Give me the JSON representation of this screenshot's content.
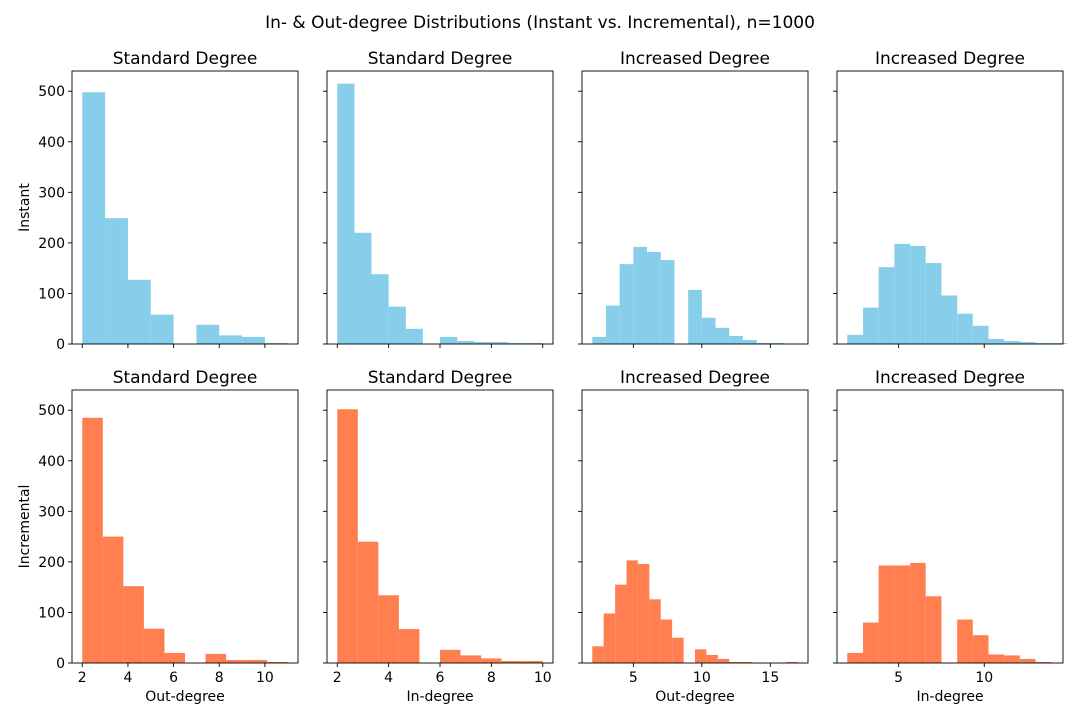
{
  "figure": {
    "title": "In- & Out-degree Distributions (Instant vs. Incremental), n=1000"
  },
  "colors": {
    "instant": "#87CEEB",
    "incremental": "#FF7F50"
  },
  "chart_data": [
    {
      "type": "bar",
      "row": 0,
      "col": 0,
      "title": "Standard Degree",
      "ylabel": "Instant",
      "xlabel": "",
      "color": "#87CEEB",
      "bins": [
        [
          2,
          3,
          498
        ],
        [
          3,
          4,
          249
        ],
        [
          4,
          5,
          127
        ],
        [
          5,
          6,
          58
        ],
        [
          6,
          7,
          0
        ],
        [
          7,
          8,
          38
        ],
        [
          8,
          9,
          17
        ],
        [
          9,
          10,
          14
        ],
        [
          10,
          11,
          2
        ]
      ],
      "xlim": [
        1.55,
        11.45
      ],
      "ylim": [
        0,
        540
      ],
      "xticks": [
        2,
        4,
        6,
        8,
        10
      ],
      "yticks": [
        0,
        100,
        200,
        300,
        400,
        500
      ],
      "show_xticklabels": false,
      "show_yticklabels": true
    },
    {
      "type": "bar",
      "row": 0,
      "col": 1,
      "title": "Standard Degree",
      "ylabel": "",
      "xlabel": "",
      "color": "#87CEEB",
      "bins": [
        [
          2,
          2.67,
          515
        ],
        [
          2.67,
          3.33,
          220
        ],
        [
          3.33,
          4,
          138
        ],
        [
          4,
          4.67,
          74
        ],
        [
          4.67,
          5.33,
          30
        ],
        [
          5.33,
          6,
          0
        ],
        [
          6,
          6.67,
          14
        ],
        [
          6.67,
          7.33,
          6
        ],
        [
          7.33,
          8,
          4
        ],
        [
          8,
          8.67,
          4
        ],
        [
          8.67,
          9.33,
          2
        ],
        [
          9.33,
          10,
          2
        ]
      ],
      "xlim": [
        1.6,
        10.4
      ],
      "ylim": [
        0,
        540
      ],
      "xticks": [
        2,
        4,
        6,
        8,
        10
      ],
      "yticks": [
        0,
        100,
        200,
        300,
        400,
        500
      ],
      "show_xticklabels": false,
      "show_yticklabels": false
    },
    {
      "type": "bar",
      "row": 0,
      "col": 2,
      "title": "Increased Degree",
      "ylabel": "",
      "xlabel": "",
      "color": "#87CEEB",
      "bins": [
        [
          2,
          3,
          14
        ],
        [
          3,
          4,
          76
        ],
        [
          4,
          5,
          158
        ],
        [
          5,
          6,
          192
        ],
        [
          6,
          7,
          182
        ],
        [
          7,
          8,
          166
        ],
        [
          8,
          9,
          0
        ],
        [
          9,
          10,
          107
        ],
        [
          10,
          11,
          52
        ],
        [
          11,
          12,
          32
        ],
        [
          12,
          13,
          16
        ],
        [
          13,
          14,
          8
        ],
        [
          14,
          15,
          2
        ],
        [
          15,
          16,
          2
        ],
        [
          16,
          17,
          1
        ]
      ],
      "xlim": [
        1.25,
        17.75
      ],
      "ylim": [
        0,
        540
      ],
      "xticks": [
        5,
        10,
        15
      ],
      "yticks": [
        0,
        100,
        200,
        300,
        400,
        500
      ],
      "show_xticklabels": false,
      "show_yticklabels": false
    },
    {
      "type": "bar",
      "row": 0,
      "col": 3,
      "title": "Increased Degree",
      "ylabel": "",
      "xlabel": "",
      "color": "#87CEEB",
      "bins": [
        [
          2,
          2.92,
          18
        ],
        [
          2.92,
          3.83,
          72
        ],
        [
          3.83,
          4.75,
          152
        ],
        [
          4.75,
          5.67,
          198
        ],
        [
          5.67,
          6.58,
          194
        ],
        [
          6.58,
          7.5,
          160
        ],
        [
          7.5,
          8.42,
          96
        ],
        [
          8.42,
          9.33,
          60
        ],
        [
          9.33,
          10.25,
          36
        ],
        [
          10.25,
          11.17,
          10
        ],
        [
          11.17,
          12.08,
          6
        ],
        [
          12.08,
          13,
          4
        ],
        [
          13,
          13.92,
          2
        ],
        [
          13.92,
          14.83,
          2
        ]
      ],
      "xlim": [
        1.4,
        14.6
      ],
      "ylim": [
        0,
        540
      ],
      "xticks": [
        5,
        10
      ],
      "yticks": [
        0,
        100,
        200,
        300,
        400,
        500
      ],
      "show_xticklabels": false,
      "show_yticklabels": false
    },
    {
      "type": "bar",
      "row": 1,
      "col": 0,
      "title": "Standard Degree",
      "ylabel": "Incremental",
      "xlabel": "Out-degree",
      "color": "#FF7F50",
      "bins": [
        [
          2,
          2.9,
          485
        ],
        [
          2.9,
          3.8,
          250
        ],
        [
          3.8,
          4.7,
          152
        ],
        [
          4.7,
          5.6,
          68
        ],
        [
          5.6,
          6.5,
          20
        ],
        [
          6.5,
          7.4,
          0
        ],
        [
          7.4,
          8.3,
          18
        ],
        [
          8.3,
          9.2,
          6
        ],
        [
          9.2,
          10.1,
          6
        ],
        [
          10.1,
          11,
          2
        ]
      ],
      "xlim": [
        1.55,
        11.45
      ],
      "ylim": [
        0,
        540
      ],
      "xticks": [
        2,
        4,
        6,
        8,
        10
      ],
      "yticks": [
        0,
        100,
        200,
        300,
        400,
        500
      ],
      "show_xticklabels": true,
      "show_yticklabels": true
    },
    {
      "type": "bar",
      "row": 1,
      "col": 1,
      "title": "Standard Degree",
      "ylabel": "",
      "xlabel": "In-degree",
      "color": "#FF7F50",
      "bins": [
        [
          2,
          2.8,
          502
        ],
        [
          2.8,
          3.6,
          240
        ],
        [
          3.6,
          4.4,
          134
        ],
        [
          4.4,
          5.2,
          67
        ],
        [
          5.2,
          6,
          0
        ],
        [
          6,
          6.8,
          26
        ],
        [
          6.8,
          7.6,
          15
        ],
        [
          7.6,
          8.4,
          9
        ],
        [
          8.4,
          9.2,
          4
        ],
        [
          9.2,
          10,
          4
        ]
      ],
      "xlim": [
        1.6,
        10.4
      ],
      "ylim": [
        0,
        540
      ],
      "xticks": [
        2,
        4,
        6,
        8,
        10
      ],
      "yticks": [
        0,
        100,
        200,
        300,
        400,
        500
      ],
      "show_xticklabels": true,
      "show_yticklabels": false
    },
    {
      "type": "bar",
      "row": 1,
      "col": 2,
      "title": "Increased Degree",
      "ylabel": "",
      "xlabel": "Out-degree",
      "color": "#FF7F50",
      "bins": [
        [
          2,
          2.83,
          33
        ],
        [
          2.83,
          3.67,
          98
        ],
        [
          3.67,
          4.5,
          155
        ],
        [
          4.5,
          5.33,
          203
        ],
        [
          5.33,
          6.17,
          196
        ],
        [
          6.17,
          7,
          126
        ],
        [
          7,
          7.83,
          86
        ],
        [
          7.83,
          8.67,
          50
        ],
        [
          8.67,
          9.5,
          0
        ],
        [
          9.5,
          10.33,
          27
        ],
        [
          10.33,
          11.17,
          16
        ],
        [
          11.17,
          12,
          8
        ],
        [
          12,
          12.83,
          2
        ],
        [
          12.83,
          13.67,
          2
        ],
        [
          13.67,
          14.5,
          0
        ],
        [
          14.5,
          15.33,
          0
        ],
        [
          15.33,
          16.17,
          0
        ],
        [
          16.17,
          17,
          2
        ]
      ],
      "xlim": [
        1.25,
        17.75
      ],
      "ylim": [
        0,
        540
      ],
      "xticks": [
        5,
        10,
        15
      ],
      "yticks": [
        0,
        100,
        200,
        300,
        400,
        500
      ],
      "show_xticklabels": true,
      "show_yticklabels": false
    },
    {
      "type": "bar",
      "row": 1,
      "col": 3,
      "title": "Increased Degree",
      "ylabel": "",
      "xlabel": "In-degree",
      "color": "#FF7F50",
      "bins": [
        [
          2,
          2.92,
          20
        ],
        [
          2.92,
          3.83,
          80
        ],
        [
          3.83,
          4.75,
          193
        ],
        [
          4.75,
          5.67,
          193
        ],
        [
          5.67,
          6.58,
          198
        ],
        [
          6.58,
          7.5,
          132
        ],
        [
          7.5,
          8.42,
          0
        ],
        [
          8.42,
          9.33,
          86
        ],
        [
          9.33,
          10.25,
          55
        ],
        [
          10.25,
          11.17,
          17
        ],
        [
          11.17,
          12.08,
          15
        ],
        [
          12.08,
          13,
          8
        ],
        [
          13,
          13.92,
          2
        ]
      ],
      "xlim": [
        1.4,
        14.6
      ],
      "ylim": [
        0,
        540
      ],
      "xticks": [
        5,
        10
      ],
      "yticks": [
        0,
        100,
        200,
        300,
        400,
        500
      ],
      "show_xticklabels": true,
      "show_yticklabels": false
    }
  ]
}
